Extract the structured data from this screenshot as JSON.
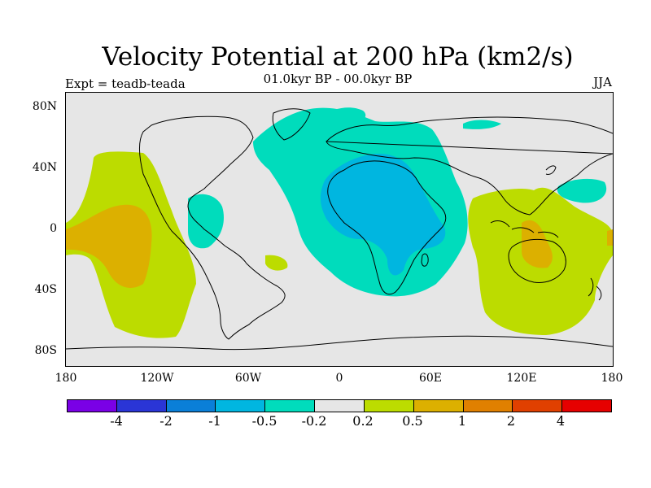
{
  "header": {
    "title": "Velocity Potential at 200 hPa (km2/s)",
    "subtitle": "01.0kyr BP - 00.0kyr BP",
    "left_label": "Expt = teadb-teada",
    "right_label": "JJA"
  },
  "map": {
    "projection": "cylindrical equidistant",
    "region": "global",
    "lon_range": [
      -180,
      180
    ],
    "lat_range": [
      -90,
      90
    ],
    "land_color": "#e6e6e6",
    "coastline_color": "#000000",
    "x_tick_labels": [
      "180",
      "120W",
      "60W",
      "0",
      "60E",
      "120E",
      "180"
    ],
    "y_tick_labels": [
      "80N",
      "40N",
      "0",
      "40S",
      "80S"
    ]
  },
  "legend": {
    "colors": [
      "#7a00e6",
      "#2a35d6",
      "#0a7fd8",
      "#00b6e0",
      "#00dcbc",
      "#e6e6e6",
      "#bcdc00",
      "#dcb000",
      "#e08000",
      "#e04000",
      "#e60000"
    ],
    "labels": [
      "-4",
      "-2",
      "-1",
      "-0.5",
      "-0.2",
      "0.2",
      "0.5",
      "1",
      "2",
      "4"
    ]
  },
  "fields": {
    "positive_low": "#bcdc00",
    "positive_mid": "#dcb000",
    "negative_low": "#00dcbc",
    "negative_mid": "#00b6e0"
  }
}
